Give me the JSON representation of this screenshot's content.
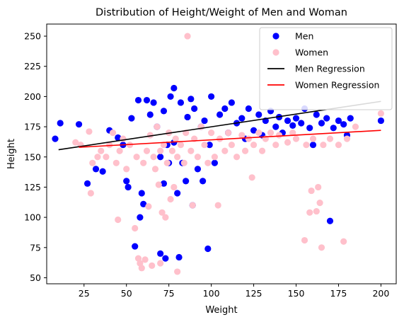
{
  "chart_data": {
    "type": "scatter",
    "title": "Distribution of Height/Weight of Men and Woman",
    "xlabel": "Weight",
    "ylabel": "Height",
    "xlim": [
      3,
      209
    ],
    "ylim": [
      45,
      260
    ],
    "xticks": [
      25,
      50,
      75,
      100,
      125,
      150,
      175,
      200
    ],
    "yticks": [
      50,
      75,
      100,
      125,
      150,
      175,
      200,
      225,
      250
    ],
    "grid": false,
    "legend_position": "top-right",
    "series": [
      {
        "name": "Men",
        "kind": "scatter",
        "color": "#0000ff",
        "points": [
          [
            8,
            165
          ],
          [
            11,
            178
          ],
          [
            22,
            177
          ],
          [
            27,
            128
          ],
          [
            32,
            140
          ],
          [
            36,
            138
          ],
          [
            40,
            172
          ],
          [
            45,
            166
          ],
          [
            48,
            160
          ],
          [
            50,
            130
          ],
          [
            51,
            125
          ],
          [
            53,
            182
          ],
          [
            55,
            76
          ],
          [
            57,
            197
          ],
          [
            58,
            100
          ],
          [
            59,
            120
          ],
          [
            60,
            111
          ],
          [
            62,
            197
          ],
          [
            64,
            185
          ],
          [
            66,
            195
          ],
          [
            68,
            175
          ],
          [
            70,
            70
          ],
          [
            70,
            150
          ],
          [
            72,
            188
          ],
          [
            72,
            128
          ],
          [
            73,
            66
          ],
          [
            74,
            160
          ],
          [
            75,
            145
          ],
          [
            76,
            200
          ],
          [
            78,
            207
          ],
          [
            78,
            162
          ],
          [
            80,
            120
          ],
          [
            81,
            67
          ],
          [
            82,
            195
          ],
          [
            83,
            145
          ],
          [
            85,
            130
          ],
          [
            86,
            183
          ],
          [
            88,
            198
          ],
          [
            89,
            110
          ],
          [
            90,
            190
          ],
          [
            92,
            140
          ],
          [
            94,
            175
          ],
          [
            95,
            130
          ],
          [
            96,
            180
          ],
          [
            98,
            74
          ],
          [
            99,
            160
          ],
          [
            100,
            200
          ],
          [
            102,
            145
          ],
          [
            105,
            185
          ],
          [
            108,
            190
          ],
          [
            110,
            170
          ],
          [
            112,
            195
          ],
          [
            115,
            178
          ],
          [
            118,
            182
          ],
          [
            120,
            165
          ],
          [
            122,
            190
          ],
          [
            125,
            172
          ],
          [
            128,
            185
          ],
          [
            130,
            168
          ],
          [
            132,
            180
          ],
          [
            135,
            188
          ],
          [
            138,
            175
          ],
          [
            140,
            183
          ],
          [
            142,
            170
          ],
          [
            145,
            180
          ],
          [
            148,
            176
          ],
          [
            150,
            182
          ],
          [
            153,
            178
          ],
          [
            155,
            190
          ],
          [
            158,
            174
          ],
          [
            160,
            160
          ],
          [
            162,
            185
          ],
          [
            165,
            178
          ],
          [
            168,
            182
          ],
          [
            170,
            97
          ],
          [
            172,
            174
          ],
          [
            175,
            180
          ],
          [
            178,
            177
          ],
          [
            180,
            168
          ],
          [
            182,
            182
          ],
          [
            200,
            180
          ]
        ]
      },
      {
        "name": "Women",
        "kind": "scatter",
        "color": "#ffc0cb",
        "points": [
          [
            20,
            162
          ],
          [
            23,
            160
          ],
          [
            28,
            171
          ],
          [
            29,
            120
          ],
          [
            30,
            145
          ],
          [
            33,
            150
          ],
          [
            35,
            155
          ],
          [
            38,
            150
          ],
          [
            40,
            160
          ],
          [
            42,
            170
          ],
          [
            44,
            145
          ],
          [
            45,
            98
          ],
          [
            46,
            155
          ],
          [
            48,
            165
          ],
          [
            50,
            140
          ],
          [
            52,
            160
          ],
          [
            55,
            91
          ],
          [
            56,
            150
          ],
          [
            57,
            66
          ],
          [
            58,
            62
          ],
          [
            59,
            58
          ],
          [
            60,
            145
          ],
          [
            61,
            65
          ],
          [
            62,
            155
          ],
          [
            63,
            109
          ],
          [
            64,
            168
          ],
          [
            65,
            60
          ],
          [
            66,
            150
          ],
          [
            67,
            140
          ],
          [
            68,
            175
          ],
          [
            69,
            127
          ],
          [
            70,
            62
          ],
          [
            70,
            155
          ],
          [
            71,
            104
          ],
          [
            72,
            160
          ],
          [
            73,
            100
          ],
          [
            74,
            145
          ],
          [
            75,
            170
          ],
          [
            76,
            115
          ],
          [
            77,
            155
          ],
          [
            78,
            125
          ],
          [
            79,
            165
          ],
          [
            80,
            55
          ],
          [
            80,
            150
          ],
          [
            82,
            160
          ],
          [
            84,
            145
          ],
          [
            85,
            170
          ],
          [
            86,
            250
          ],
          [
            88,
            155
          ],
          [
            89,
            110
          ],
          [
            90,
            165
          ],
          [
            92,
            150
          ],
          [
            94,
            175
          ],
          [
            96,
            160
          ],
          [
            98,
            145
          ],
          [
            100,
            170
          ],
          [
            102,
            150
          ],
          [
            104,
            110
          ],
          [
            105,
            165
          ],
          [
            108,
            155
          ],
          [
            110,
            170
          ],
          [
            112,
            160
          ],
          [
            115,
            150
          ],
          [
            118,
            168
          ],
          [
            120,
            155
          ],
          [
            122,
            165
          ],
          [
            124,
            133
          ],
          [
            125,
            160
          ],
          [
            128,
            170
          ],
          [
            130,
            155
          ],
          [
            132,
            165
          ],
          [
            135,
            170
          ],
          [
            138,
            160
          ],
          [
            140,
            168
          ],
          [
            145,
            162
          ],
          [
            148,
            170
          ],
          [
            150,
            165
          ],
          [
            155,
            81
          ],
          [
            156,
            160
          ],
          [
            158,
            104
          ],
          [
            159,
            122
          ],
          [
            160,
            165
          ],
          [
            162,
            105
          ],
          [
            163,
            125
          ],
          [
            164,
            112
          ],
          [
            165,
            75
          ],
          [
            166,
            160
          ],
          [
            170,
            165
          ],
          [
            175,
            160
          ],
          [
            178,
            80
          ],
          [
            180,
            165
          ],
          [
            185,
            175
          ],
          [
            200,
            186
          ]
        ]
      },
      {
        "name": "Men Regression",
        "kind": "line",
        "color": "#000000",
        "x": [
          10,
          200
        ],
        "y": [
          156,
          196
        ]
      },
      {
        "name": "Women Regression",
        "kind": "line",
        "color": "#ff0000",
        "x": [
          22,
          200
        ],
        "y": [
          158,
          172
        ]
      }
    ]
  }
}
